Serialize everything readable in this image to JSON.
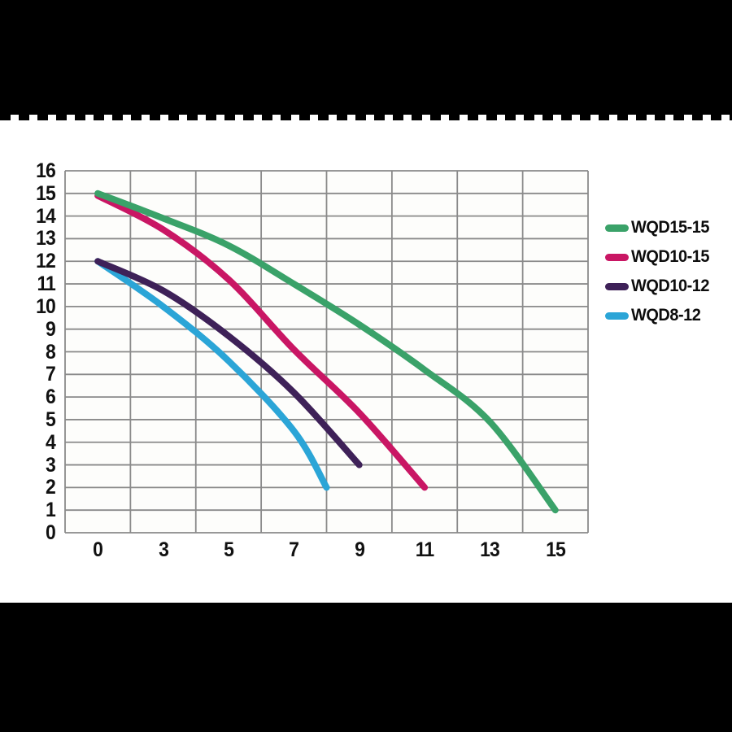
{
  "page": {
    "background": "#ffffff",
    "top_band_color": "#000000",
    "bottom_band_color": "#000000",
    "divider_dash_color": "#000000"
  },
  "chart_data": {
    "type": "line",
    "title": "",
    "xlabel": "",
    "ylabel": "",
    "x_ticks": [
      0,
      3,
      5,
      7,
      9,
      11,
      13,
      15
    ],
    "y_ticks": [
      0,
      1,
      2,
      3,
      4,
      5,
      6,
      7,
      8,
      9,
      10,
      11,
      12,
      13,
      14,
      15,
      16
    ],
    "ylim": [
      0,
      16
    ],
    "xlim_labels": [
      0,
      15
    ],
    "grid": true,
    "grid_color": "#8a8a8a",
    "plot_background": "#fdfdfb",
    "tick_label_color": "#111111",
    "legend_position": "right",
    "series": [
      {
        "name": "WQD15-15",
        "color": "#3aa269",
        "points": [
          [
            0,
            15
          ],
          [
            3,
            13.9
          ],
          [
            5,
            12.7
          ],
          [
            7,
            11.0
          ],
          [
            9,
            9.2
          ],
          [
            11,
            7.2
          ],
          [
            13,
            4.9
          ],
          [
            15,
            1
          ]
        ]
      },
      {
        "name": "WQD10-15",
        "color": "#c91664",
        "points": [
          [
            0,
            14.9
          ],
          [
            3,
            13.4
          ],
          [
            5,
            11.2
          ],
          [
            7,
            8.1
          ],
          [
            9,
            5.3
          ],
          [
            11,
            2
          ]
        ]
      },
      {
        "name": "WQD10-12",
        "color": "#3e2158",
        "points": [
          [
            0,
            12
          ],
          [
            3,
            10.7
          ],
          [
            5,
            8.7
          ],
          [
            7,
            6.2
          ],
          [
            9,
            3
          ]
        ]
      },
      {
        "name": "WQD8-12",
        "color": "#2ba5d7",
        "points": [
          [
            0,
            12
          ],
          [
            3,
            10.0
          ],
          [
            5,
            7.6
          ],
          [
            7,
            4.5
          ],
          [
            8,
            2
          ]
        ]
      }
    ]
  }
}
